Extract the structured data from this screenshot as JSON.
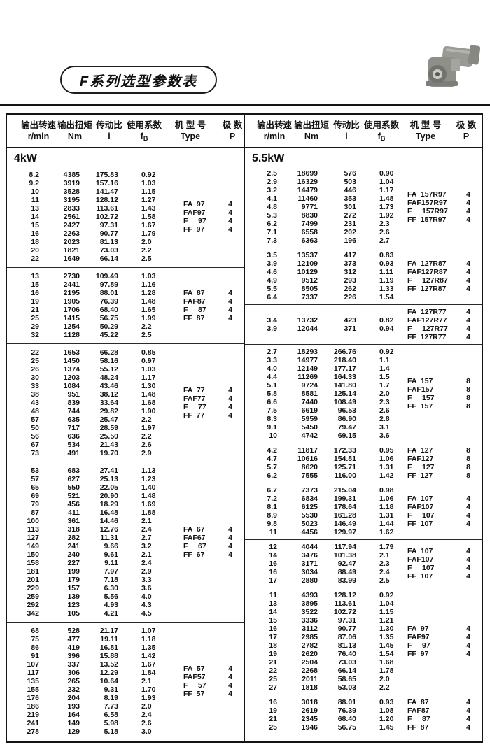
{
  "title": "F系列选型参数表",
  "photo_label": "gearmotor-photo",
  "header": {
    "cols": [
      {
        "key": "speed",
        "cn": "输出转速",
        "unit": "r/min"
      },
      {
        "key": "torque",
        "cn": "输出扭矩",
        "unit": "Nm"
      },
      {
        "key": "ratio",
        "cn": "传动比",
        "unit": "i"
      },
      {
        "key": "factor",
        "cn": "使用系数",
        "unit": "fB"
      },
      {
        "key": "type",
        "cn": "机 型 号",
        "unit": "Type"
      },
      {
        "key": "poles",
        "cn": "极  数",
        "unit": "P"
      }
    ]
  },
  "left": {
    "power": "4kW",
    "blocks": [
      {
        "rows": [
          [
            "8.2",
            "4385",
            "175.83",
            "0.92"
          ],
          [
            "9.2",
            "3919",
            "157.16",
            "1.03"
          ],
          [
            "10",
            "3528",
            "141.47",
            "1.15"
          ],
          [
            "11",
            "3195",
            "128.12",
            "1.27"
          ],
          [
            "13",
            "2833",
            "113.61",
            "1.43"
          ],
          [
            "14",
            "2561",
            "102.72",
            "1.58"
          ],
          [
            "15",
            "2427",
            "97.31",
            "1.67"
          ],
          [
            "16",
            "2263",
            "90.77",
            "1.79"
          ],
          [
            "18",
            "2023",
            "81.13",
            "2.0"
          ],
          [
            "20",
            "1821",
            "73.03",
            "2.2"
          ],
          [
            "22",
            "1649",
            "66.14",
            "2.5"
          ]
        ],
        "types": [
          "FA  97",
          "FAF97",
          "F     97",
          "FF  97"
        ],
        "poles": [
          "4",
          "4",
          "4",
          "4"
        ]
      },
      {
        "rows": [
          [
            "13",
            "2730",
            "109.49",
            "1.03"
          ],
          [
            "15",
            "2441",
            "97.89",
            "1.16"
          ],
          [
            "16",
            "2195",
            "88.01",
            "1.28"
          ],
          [
            "19",
            "1905",
            "76.39",
            "1.48"
          ],
          [
            "21",
            "1706",
            "68.40",
            "1.65"
          ],
          [
            "25",
            "1415",
            "56.75",
            "1.99"
          ],
          [
            "29",
            "1254",
            "50.29",
            "2.2"
          ],
          [
            "32",
            "1128",
            "45.22",
            "2.5"
          ]
        ],
        "types": [
          "FA  87",
          "FAF87",
          "F     87",
          "FF  87"
        ],
        "poles": [
          "4",
          "4",
          "4",
          "4"
        ]
      },
      {
        "rows": [
          [
            "22",
            "1653",
            "66.28",
            "0.85"
          ],
          [
            "25",
            "1450",
            "58.16",
            "0.97"
          ],
          [
            "26",
            "1374",
            "55.12",
            "1.03"
          ],
          [
            "30",
            "1203",
            "48.24",
            "1.17"
          ],
          [
            "33",
            "1084",
            "43.46",
            "1.30"
          ],
          [
            "38",
            "951",
            "38.12",
            "1.48"
          ],
          [
            "43",
            "839",
            "33.64",
            "1.68"
          ],
          [
            "48",
            "744",
            "29.82",
            "1.90"
          ],
          [
            "57",
            "635",
            "25.47",
            "2.2"
          ],
          [
            "50",
            "717",
            "28.59",
            "1.97"
          ],
          [
            "56",
            "636",
            "25.50",
            "2.2"
          ],
          [
            "67",
            "534",
            "21.43",
            "2.6"
          ],
          [
            "73",
            "491",
            "19.70",
            "2.9"
          ]
        ],
        "types": [
          "FA  77",
          "FAF77",
          "F     77",
          "FF  77"
        ],
        "poles": [
          "4",
          "4",
          "4",
          "4"
        ]
      },
      {
        "rows": [
          [
            "53",
            "683",
            "27.41",
            "1.13"
          ],
          [
            "57",
            "627",
            "25.13",
            "1.23"
          ],
          [
            "65",
            "550",
            "22.05",
            "1.40"
          ],
          [
            "69",
            "521",
            "20.90",
            "1.48"
          ],
          [
            "79",
            "456",
            "18.29",
            "1.69"
          ],
          [
            "87",
            "411",
            "16.48",
            "1.88"
          ],
          [
            "100",
            "361",
            "14.46",
            "2.1"
          ],
          [
            "113",
            "318",
            "12.76",
            "2.4"
          ],
          [
            "127",
            "282",
            "11.31",
            "2.7"
          ],
          [
            "149",
            "241",
            "9.66",
            "3.2"
          ],
          [
            "150",
            "240",
            "9.61",
            "2.1"
          ],
          [
            "158",
            "227",
            "9.11",
            "2.4"
          ],
          [
            "181",
            "199",
            "7.97",
            "2.9"
          ],
          [
            "201",
            "179",
            "7.18",
            "3.3"
          ],
          [
            "229",
            "157",
            "6.30",
            "3.6"
          ],
          [
            "259",
            "139",
            "5.56",
            "4.0"
          ],
          [
            "292",
            "123",
            "4.93",
            "4.3"
          ],
          [
            "342",
            "105",
            "4.21",
            "4.5"
          ]
        ],
        "types": [
          "FA  67",
          "FAF67",
          "F     67",
          "FF  67"
        ],
        "poles": [
          "4",
          "4",
          "4",
          "4"
        ]
      },
      {
        "rows": [
          [
            "68",
            "528",
            "21.17",
            "1.07"
          ],
          [
            "75",
            "477",
            "19.11",
            "1.18"
          ],
          [
            "86",
            "419",
            "16.81",
            "1.35"
          ],
          [
            "91",
            "396",
            "15.88",
            "1.42"
          ],
          [
            "107",
            "337",
            "13.52",
            "1.67"
          ],
          [
            "117",
            "306",
            "12.29",
            "1.84"
          ],
          [
            "135",
            "265",
            "10.64",
            "2.1"
          ],
          [
            "155",
            "232",
            "9.31",
            "1.70"
          ],
          [
            "176",
            "204",
            "8.19",
            "1.93"
          ],
          [
            "186",
            "193",
            "7.73",
            "2.0"
          ],
          [
            "219",
            "164",
            "6.58",
            "2.4"
          ],
          [
            "241",
            "149",
            "5.98",
            "2.6"
          ],
          [
            "278",
            "129",
            "5.18",
            "3.0"
          ]
        ],
        "types": [
          "FA  57",
          "FAF57",
          "F     57",
          "FF  57"
        ],
        "poles": [
          "4",
          "4",
          "4",
          "4"
        ]
      }
    ]
  },
  "right": {
    "power": "5.5kW",
    "blocks": [
      {
        "rows": [
          [
            "2.5",
            "18699",
            "576",
            "0.90"
          ],
          [
            "2.9",
            "16329",
            "503",
            "1.04"
          ],
          [
            "3.2",
            "14479",
            "446",
            "1.17"
          ],
          [
            "4.1",
            "11460",
            "353",
            "1.48"
          ],
          [
            "4.8",
            "9771",
            "301",
            "1.73"
          ],
          [
            "5.3",
            "8830",
            "272",
            "1.92"
          ],
          [
            "6.2",
            "7499",
            "231",
            "2.3"
          ],
          [
            "7.1",
            "6558",
            "202",
            "2.6"
          ],
          [
            "7.3",
            "6363",
            "196",
            "2.7"
          ]
        ],
        "types": [
          "FA  157R97",
          "FAF157R97",
          "F     157R97",
          "FF  157R97"
        ],
        "poles": [
          "4",
          "4",
          "4",
          "4"
        ]
      },
      {
        "rows": [
          [
            "3.5",
            "13537",
            "417",
            "0.83"
          ],
          [
            "3.9",
            "12109",
            "373",
            "0.93"
          ],
          [
            "4.6",
            "10129",
            "312",
            "1.11"
          ],
          [
            "4.9",
            "9512",
            "293",
            "1.19"
          ],
          [
            "5.5",
            "8505",
            "262",
            "1.33"
          ],
          [
            "6.4",
            "7337",
            "226",
            "1.54"
          ]
        ],
        "types": [
          "FA  127R87",
          "FAF127R87",
          "F     127R87",
          "FF  127R87"
        ],
        "poles": [
          "4",
          "4",
          "4",
          "4"
        ]
      },
      {
        "rows": [
          [
            "3.4",
            "13732",
            "423",
            "0.82"
          ],
          [
            "3.9",
            "12044",
            "371",
            "0.94"
          ]
        ],
        "types": [
          "FA  127R77",
          "FAF127R77",
          "F     127R77",
          "FF  127R77"
        ],
        "poles": [
          "4",
          "4",
          "4",
          "4"
        ]
      },
      {
        "rows": [
          [
            "2.7",
            "18293",
            "266.76",
            "0.92"
          ],
          [
            "3.3",
            "14977",
            "218.40",
            "1.1"
          ],
          [
            "4.0",
            "12149",
            "177.17",
            "1.4"
          ],
          [
            "4.4",
            "11269",
            "164.33",
            "1.5"
          ],
          [
            "5.1",
            "9724",
            "141.80",
            "1.7"
          ],
          [
            "5.8",
            "8581",
            "125.14",
            "2.0"
          ],
          [
            "6.6",
            "7440",
            "108.49",
            "2.3"
          ],
          [
            "7.5",
            "6619",
            "96.53",
            "2.6"
          ],
          [
            "8.3",
            "5959",
            "86.90",
            "2.8"
          ],
          [
            "9.1",
            "5450",
            "79.47",
            "3.1"
          ],
          [
            "10",
            "4742",
            "69.15",
            "3.6"
          ]
        ],
        "types": [
          "FA  157",
          "FAF157",
          "F     157",
          "FF  157"
        ],
        "poles": [
          "8",
          "8",
          "8",
          "8"
        ]
      },
      {
        "rows": [
          [
            "4.2",
            "11817",
            "172.33",
            "0.95"
          ],
          [
            "4.7",
            "10616",
            "154.81",
            "1.06"
          ],
          [
            "5.7",
            "8620",
            "125.71",
            "1.31"
          ],
          [
            "6.2",
            "7555",
            "116.00",
            "1.42"
          ]
        ],
        "types": [
          "FA  127",
          "FAF127",
          "F     127",
          "FF  127"
        ],
        "poles": [
          "8",
          "8",
          "8",
          "8"
        ]
      },
      {
        "rows": [
          [
            "6.7",
            "7373",
            "215.04",
            "0.98"
          ],
          [
            "7.2",
            "6834",
            "199.31",
            "1.06"
          ],
          [
            "8.1",
            "6125",
            "178.64",
            "1.18"
          ],
          [
            "8.9",
            "5530",
            "161.28",
            "1.31"
          ],
          [
            "9.8",
            "5023",
            "146.49",
            "1.44"
          ],
          [
            "11",
            "4456",
            "129.97",
            "1.62"
          ]
        ],
        "types": [
          "FA  107",
          "FAF107",
          "F     107",
          "FF  107"
        ],
        "poles": [
          "4",
          "4",
          "4",
          "4"
        ]
      },
      {
        "rows": [
          [
            "12",
            "4044",
            "117.94",
            "1.79"
          ],
          [
            "14",
            "3476",
            "101.38",
            "2.1"
          ],
          [
            "16",
            "3171",
            "92.47",
            "2.3"
          ],
          [
            "16",
            "3034",
            "88.49",
            "2.4"
          ],
          [
            "17",
            "2880",
            "83.99",
            "2.5"
          ]
        ],
        "types": [
          "FA  107",
          "FAF107",
          "F     107",
          "FF  107"
        ],
        "poles": [
          "4",
          "4",
          "4",
          "4"
        ]
      },
      {
        "rows": [
          [
            "11",
            "4393",
            "128.12",
            "0.92"
          ],
          [
            "13",
            "3895",
            "113.61",
            "1.04"
          ],
          [
            "14",
            "3522",
            "102.72",
            "1.15"
          ],
          [
            "15",
            "3336",
            "97.31",
            "1.21"
          ],
          [
            "16",
            "3112",
            "90.77",
            "1.30"
          ],
          [
            "17",
            "2985",
            "87.06",
            "1.35"
          ],
          [
            "18",
            "2782",
            "81.13",
            "1.45"
          ],
          [
            "19",
            "2620",
            "76.40",
            "1.54"
          ],
          [
            "21",
            "2504",
            "73.03",
            "1.68"
          ],
          [
            "22",
            "2268",
            "66.14",
            "1.78"
          ],
          [
            "25",
            "2011",
            "58.65",
            "2.0"
          ],
          [
            "27",
            "1818",
            "53.03",
            "2.2"
          ]
        ],
        "types": [
          "FA  97",
          "FAF97",
          "F     97",
          "FF  97"
        ],
        "poles": [
          "4",
          "4",
          "4",
          "4"
        ]
      },
      {
        "rows": [
          [
            "16",
            "3018",
            "88.01",
            "0.93"
          ],
          [
            "19",
            "2619",
            "76.39",
            "1.08"
          ],
          [
            "21",
            "2345",
            "68.40",
            "1.20"
          ],
          [
            "25",
            "1946",
            "56.75",
            "1.45"
          ]
        ],
        "types": [
          "FA  87",
          "FAF87",
          "F     87",
          "FF  87"
        ],
        "poles": [
          "4",
          "4",
          "4",
          "4"
        ]
      }
    ]
  }
}
